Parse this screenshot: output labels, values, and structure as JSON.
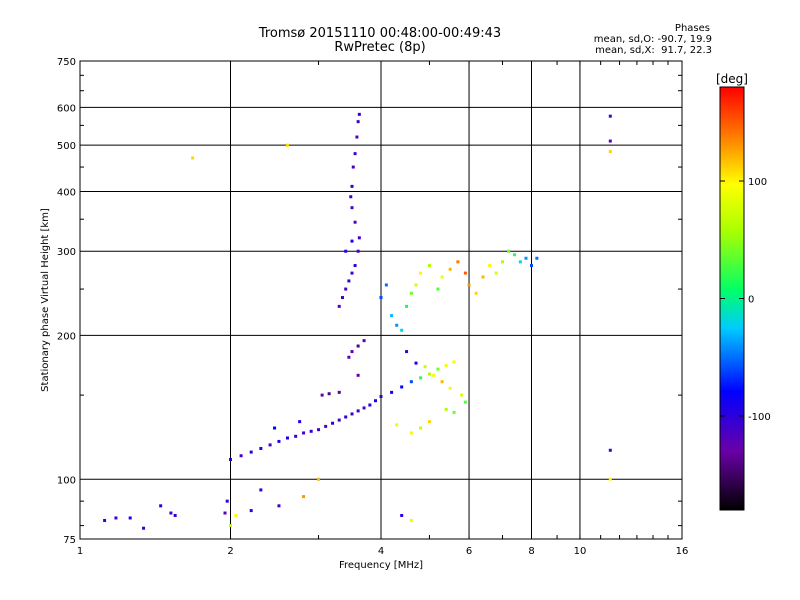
{
  "chart_data": {
    "type": "scatter",
    "title": "Tromsø 20151110 00:48:00-00:49:43",
    "subtitle": "RwPretec (8p)",
    "xlabel": "Frequency [MHz]",
    "ylabel": "Stationary phase Virtual Height [km]",
    "x_scale": "log",
    "y_scale": "log",
    "xlim": [
      1,
      16
    ],
    "ylim": [
      75,
      750
    ],
    "x_ticks": [
      1,
      2,
      4,
      6,
      8,
      10,
      16
    ],
    "x_tick_labels": [
      "1",
      "2",
      "4",
      "6",
      "8",
      "10",
      "16"
    ],
    "y_ticks": [
      75,
      100,
      200,
      300,
      400,
      500,
      600,
      750
    ],
    "y_tick_labels": [
      "75",
      "100",
      "200",
      "300",
      "400",
      "500",
      "600",
      "750"
    ],
    "grid": true,
    "legend": {
      "title": "Phases",
      "lines": [
        "mean, sd,O: -90.7, 19.9",
        "mean, sd,X:  91.7, 22.3"
      ]
    },
    "colorbar": {
      "label": "[deg]",
      "range": [
        -180,
        180
      ],
      "ticks": [
        100,
        0,
        -100
      ],
      "tick_labels": [
        "100",
        "0",
        "-100"
      ],
      "colormap": "rainbow"
    },
    "points": [
      [
        1.12,
        82,
        -100
      ],
      [
        1.18,
        83,
        -110
      ],
      [
        1.26,
        83,
        -90
      ],
      [
        1.34,
        79,
        -105
      ],
      [
        1.45,
        88,
        -95
      ],
      [
        1.52,
        85,
        -110
      ],
      [
        1.55,
        84,
        -100
      ],
      [
        1.68,
        470,
        110
      ],
      [
        1.95,
        85,
        -120
      ],
      [
        1.97,
        90,
        -100
      ],
      [
        2.0,
        110,
        -105
      ],
      [
        2.05,
        84,
        95
      ],
      [
        2.1,
        112,
        -110
      ],
      [
        2.2,
        114,
        -100
      ],
      [
        2.3,
        116,
        -95
      ],
      [
        2.4,
        118,
        -110
      ],
      [
        2.5,
        120,
        -100
      ],
      [
        2.6,
        122,
        -90
      ],
      [
        2.7,
        123,
        -105
      ],
      [
        2.8,
        125,
        -115
      ],
      [
        2.9,
        126,
        -100
      ],
      [
        3.0,
        127,
        -110
      ],
      [
        3.1,
        129,
        -120
      ],
      [
        3.2,
        131,
        -100
      ],
      [
        3.3,
        133,
        -115
      ],
      [
        3.4,
        135,
        -105
      ],
      [
        3.5,
        137,
        -110
      ],
      [
        3.6,
        139,
        -100
      ],
      [
        3.7,
        141,
        -115
      ],
      [
        3.8,
        143,
        -105
      ],
      [
        3.9,
        146,
        -95
      ],
      [
        4.0,
        149,
        -100
      ],
      [
        4.2,
        152,
        -90
      ],
      [
        4.4,
        156,
        -80
      ],
      [
        4.6,
        160,
        -60
      ],
      [
        4.8,
        163,
        20
      ],
      [
        5.0,
        166,
        60
      ],
      [
        5.2,
        170,
        40
      ],
      [
        5.4,
        173,
        90
      ],
      [
        5.6,
        176,
        100
      ],
      [
        2.45,
        128,
        -80
      ],
      [
        2.75,
        132,
        -90
      ],
      [
        3.05,
        150,
        -130
      ],
      [
        3.15,
        151,
        -140
      ],
      [
        3.3,
        152,
        -135
      ],
      [
        3.6,
        165,
        -130
      ],
      [
        3.45,
        180,
        -120
      ],
      [
        3.5,
        185,
        -125
      ],
      [
        3.6,
        190,
        -140
      ],
      [
        3.7,
        195,
        -120
      ],
      [
        3.3,
        230,
        -120
      ],
      [
        3.35,
        240,
        -110
      ],
      [
        3.4,
        250,
        -115
      ],
      [
        3.45,
        260,
        -100
      ],
      [
        3.5,
        270,
        -110
      ],
      [
        3.55,
        280,
        -105
      ],
      [
        3.6,
        300,
        -115
      ],
      [
        3.62,
        320,
        -110
      ],
      [
        3.55,
        345,
        -120
      ],
      [
        3.5,
        370,
        -115
      ],
      [
        3.48,
        390,
        -110
      ],
      [
        3.5,
        410,
        -105
      ],
      [
        3.52,
        450,
        -115
      ],
      [
        3.55,
        480,
        -110
      ],
      [
        3.58,
        520,
        -120
      ],
      [
        3.6,
        560,
        -110
      ],
      [
        3.62,
        580,
        -105
      ],
      [
        3.4,
        300,
        -100
      ],
      [
        3.5,
        315,
        -95
      ],
      [
        4.0,
        240,
        -60
      ],
      [
        4.1,
        255,
        -50
      ],
      [
        4.2,
        220,
        -30
      ],
      [
        4.3,
        210,
        -40
      ],
      [
        4.4,
        205,
        -20
      ],
      [
        4.5,
        230,
        10
      ],
      [
        4.6,
        245,
        40
      ],
      [
        4.7,
        255,
        80
      ],
      [
        4.8,
        270,
        100
      ],
      [
        5.0,
        280,
        60
      ],
      [
        5.2,
        250,
        30
      ],
      [
        5.3,
        265,
        90
      ],
      [
        5.5,
        275,
        120
      ],
      [
        5.7,
        285,
        140
      ],
      [
        5.9,
        270,
        150
      ],
      [
        6.0,
        255,
        130
      ],
      [
        6.2,
        245,
        110
      ],
      [
        6.4,
        265,
        120
      ],
      [
        6.6,
        280,
        100
      ],
      [
        6.8,
        270,
        80
      ],
      [
        7.0,
        285,
        60
      ],
      [
        7.2,
        300,
        40
      ],
      [
        7.4,
        295,
        20
      ],
      [
        7.6,
        285,
        -20
      ],
      [
        7.8,
        290,
        -40
      ],
      [
        8.0,
        280,
        -60
      ],
      [
        8.2,
        290,
        -50
      ],
      [
        4.5,
        185,
        -100
      ],
      [
        4.7,
        175,
        -90
      ],
      [
        4.9,
        172,
        70
      ],
      [
        5.1,
        165,
        100
      ],
      [
        5.3,
        160,
        120
      ],
      [
        5.5,
        155,
        100
      ],
      [
        5.8,
        150,
        80
      ],
      [
        4.3,
        130,
        90
      ],
      [
        4.6,
        125,
        100
      ],
      [
        4.8,
        128,
        70
      ],
      [
        5.0,
        132,
        110
      ],
      [
        5.4,
        140,
        60
      ],
      [
        5.6,
        138,
        40
      ],
      [
        5.9,
        145,
        30
      ],
      [
        11.5,
        575,
        -110
      ],
      [
        11.5,
        510,
        -120
      ],
      [
        11.5,
        485,
        110
      ],
      [
        11.5,
        115,
        -110
      ],
      [
        11.5,
        100,
        100
      ],
      [
        2.6,
        500,
        110
      ],
      [
        2.3,
        95,
        -100
      ],
      [
        2.5,
        88,
        -110
      ],
      [
        2.8,
        92,
        130
      ],
      [
        3.0,
        100,
        120
      ],
      [
        4.6,
        82,
        90
      ],
      [
        4.4,
        84,
        -100
      ],
      [
        2.2,
        86,
        -100
      ],
      [
        2.0,
        80,
        70
      ]
    ]
  }
}
